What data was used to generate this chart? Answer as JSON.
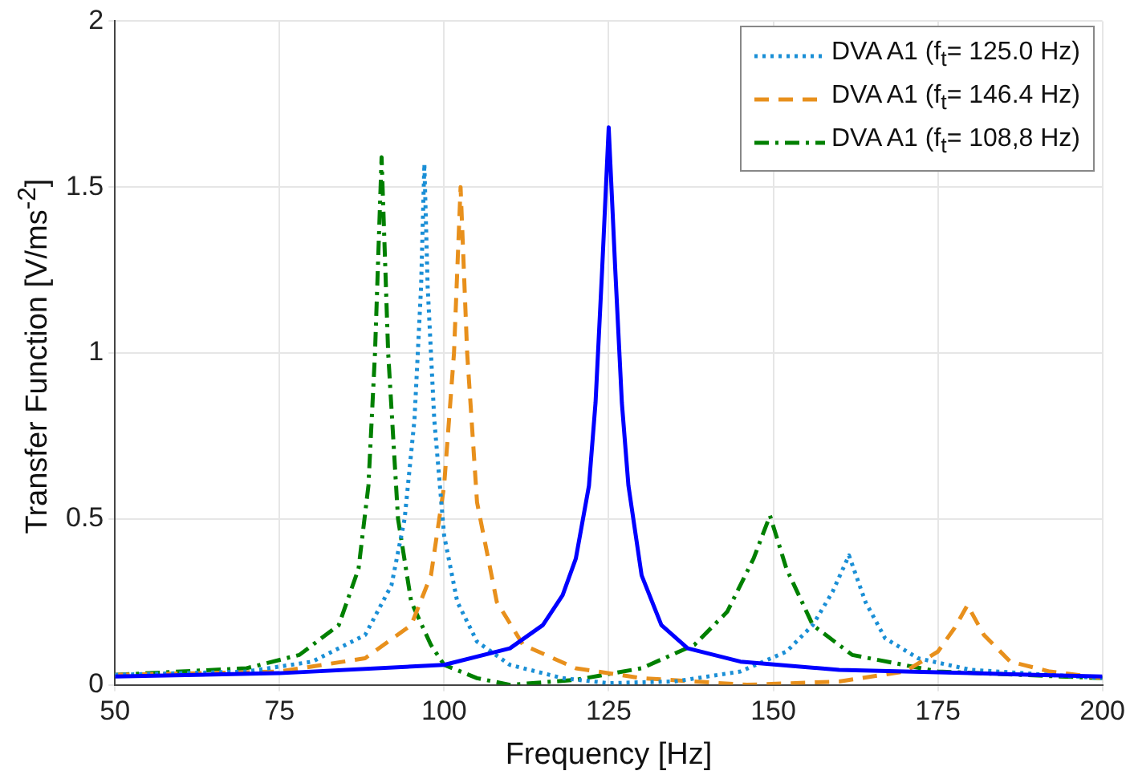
{
  "chart_data": {
    "type": "line",
    "xlabel": "Frequency [Hz]",
    "ylabel": "Transfer Function [V/ms$^{-2}$]",
    "xlim": [
      50,
      200
    ],
    "xticks": [
      50,
      75,
      100,
      125,
      150,
      175,
      200
    ],
    "ylim": [
      0,
      2
    ],
    "yticks": [
      0,
      0.5,
      1,
      1.5,
      2
    ],
    "grid": true,
    "legend": "top right",
    "marker": "none",
    "series": [
      {
        "color": "#0000ff",
        "line_style": "solid",
        "x": [
          50,
          75,
          100,
          110,
          115,
          118,
          120,
          122,
          123,
          124,
          125,
          126,
          127,
          128,
          130,
          133,
          137,
          145,
          160,
          180,
          200
        ],
        "values": [
          0.025,
          0.035,
          0.06,
          0.11,
          0.18,
          0.27,
          0.38,
          0.6,
          0.85,
          1.25,
          1.68,
          1.25,
          0.85,
          0.6,
          0.33,
          0.18,
          0.11,
          0.07,
          0.045,
          0.035,
          0.025
        ]
      },
      {
        "name": "DVA A1 (f$_{t}$= 125.0 Hz)",
        "color": "#1a8fd6",
        "line_style": "dotted",
        "x": [
          50,
          70,
          80,
          88,
          92,
          94,
          95.5,
          96.5,
          97,
          97.5,
          98.5,
          100,
          102,
          105,
          110,
          118,
          125,
          135,
          145,
          152,
          156,
          159,
          161.5,
          164,
          167,
          172,
          180,
          200
        ],
        "values": [
          0.03,
          0.04,
          0.07,
          0.15,
          0.3,
          0.5,
          0.8,
          1.2,
          1.57,
          1.2,
          0.8,
          0.45,
          0.25,
          0.13,
          0.06,
          0.02,
          0.005,
          0.01,
          0.04,
          0.1,
          0.18,
          0.28,
          0.39,
          0.25,
          0.14,
          0.08,
          0.045,
          0.02
        ]
      },
      {
        "name": "DVA A1 (f$_{t}$= 146.4 Hz)",
        "color": "#e8901c",
        "line_style": "dashed",
        "x": [
          50,
          75,
          88,
          95,
          98,
          100,
          101.5,
          102.5,
          103.5,
          105,
          108,
          112,
          120,
          130,
          146,
          160,
          170,
          175,
          177.5,
          179.5,
          182,
          186,
          192,
          200
        ],
        "values": [
          0.03,
          0.04,
          0.08,
          0.18,
          0.33,
          0.6,
          1.0,
          1.5,
          1.0,
          0.55,
          0.25,
          0.12,
          0.05,
          0.02,
          0,
          0.01,
          0.04,
          0.1,
          0.17,
          0.24,
          0.15,
          0.07,
          0.04,
          0.02
        ]
      },
      {
        "name": "DVA A1 (f$_{t}$= 108,8 Hz)",
        "color": "#008000",
        "line_style": "dashdot",
        "x": [
          50,
          70,
          78,
          84,
          87,
          88.5,
          89.5,
          90.5,
          91.5,
          93,
          95,
          98,
          100,
          105,
          110,
          120,
          130,
          138,
          143,
          147,
          149.5,
          152,
          156,
          162,
          175,
          200
        ],
        "values": [
          0.03,
          0.05,
          0.09,
          0.18,
          0.35,
          0.6,
          1.0,
          1.59,
          1.0,
          0.5,
          0.25,
          0.12,
          0.06,
          0.02,
          0,
          0.015,
          0.05,
          0.12,
          0.22,
          0.38,
          0.51,
          0.35,
          0.18,
          0.09,
          0.04,
          0.02
        ]
      }
    ]
  }
}
